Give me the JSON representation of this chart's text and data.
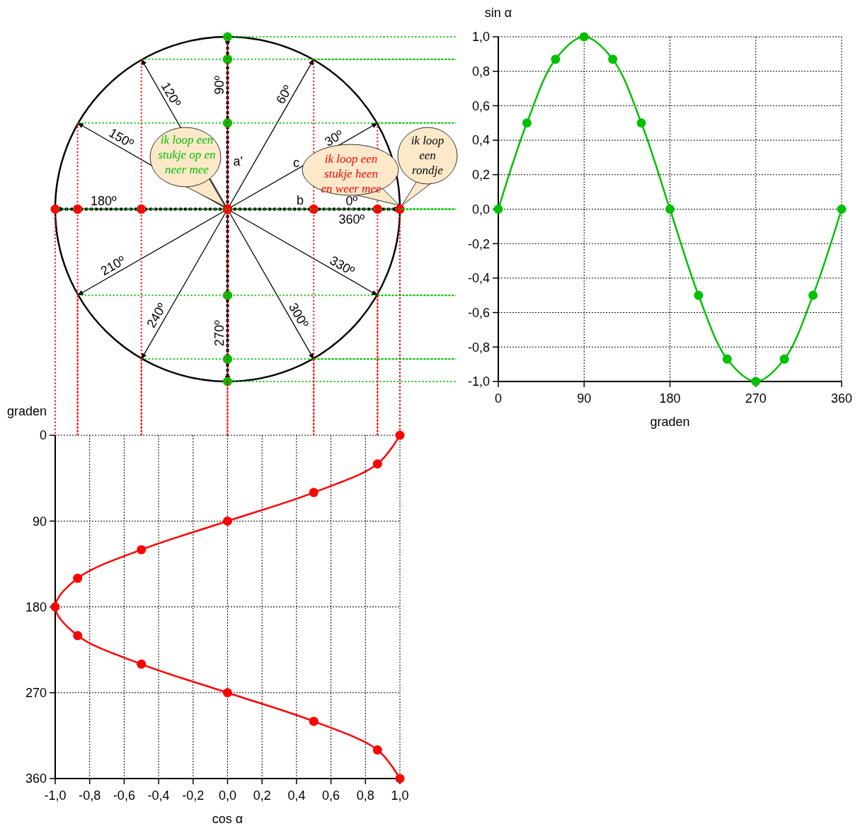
{
  "chart_data": [
    {
      "type": "other",
      "annotations": [
        "0º",
        "30º",
        "60º",
        "90º",
        "120º",
        "150º",
        "180º",
        "210º",
        "240º",
        "270º",
        "300º",
        "330º",
        "360º",
        "a'",
        "b",
        "c",
        "ik loop een stukje op en neer mee",
        "ik loop een stukje heen en weer mee",
        "ik loop een rondje"
      ]
    },
    {
      "type": "line",
      "xlabel": "graden",
      "ylabel": "sin α",
      "x": [
        0,
        30,
        60,
        90,
        120,
        150,
        180,
        210,
        240,
        270,
        300,
        330,
        360
      ],
      "values": [
        0,
        0.5,
        0.87,
        1,
        0.87,
        0.5,
        0,
        -0.5,
        -0.87,
        -1,
        -0.87,
        -0.5,
        0
      ],
      "color": "#00c000",
      "xlim": [
        0,
        360
      ],
      "xticks": [
        0,
        90,
        180,
        270,
        360
      ],
      "ylim": [
        -1,
        1
      ],
      "yticks": [
        {
          "value": -1,
          "label": "-1,0"
        },
        {
          "value": -0.8,
          "label": "-0,8"
        },
        {
          "value": -0.6,
          "label": "-0,6"
        },
        {
          "value": -0.4,
          "label": "-0,4"
        },
        {
          "value": -0.2,
          "label": "-0,2"
        },
        {
          "value": 0,
          "label": "0,0"
        },
        {
          "value": 0.2,
          "label": "0,2"
        },
        {
          "value": 0.4,
          "label": "0,4"
        },
        {
          "value": 0.6,
          "label": "0,6"
        },
        {
          "value": 0.8,
          "label": "0,8"
        },
        {
          "value": 1,
          "label": "1,0"
        }
      ],
      "grid": true,
      "marker": "circle"
    },
    {
      "type": "line",
      "xlabel": "cos α",
      "ylabel": "graden",
      "x": [
        1,
        0.87,
        0.5,
        0,
        -0.5,
        -0.87,
        -1,
        -0.87,
        -0.5,
        0,
        0.5,
        0.87,
        1
      ],
      "values": [
        0,
        30,
        60,
        90,
        120,
        150,
        180,
        210,
        240,
        270,
        300,
        330,
        360
      ],
      "color": "#ff0000",
      "xlim": [
        -1,
        1
      ],
      "xticks": [
        {
          "value": -1,
          "label": "-1,0"
        },
        {
          "value": -0.8,
          "label": "-0,8"
        },
        {
          "value": -0.6,
          "label": "-0,6"
        },
        {
          "value": -0.4,
          "label": "-0,4"
        },
        {
          "value": -0.2,
          "label": "-0,2"
        },
        {
          "value": 0,
          "label": "0,0"
        },
        {
          "value": 0.2,
          "label": "0,2"
        },
        {
          "value": 0.4,
          "label": "0,4"
        },
        {
          "value": 0.6,
          "label": "0,6"
        },
        {
          "value": 0.8,
          "label": "0,8"
        },
        {
          "value": 1,
          "label": "1,0"
        }
      ],
      "ylim": [
        360,
        0
      ],
      "yticks": [
        0,
        90,
        180,
        270,
        360
      ],
      "grid": true,
      "marker": "circle"
    }
  ]
}
